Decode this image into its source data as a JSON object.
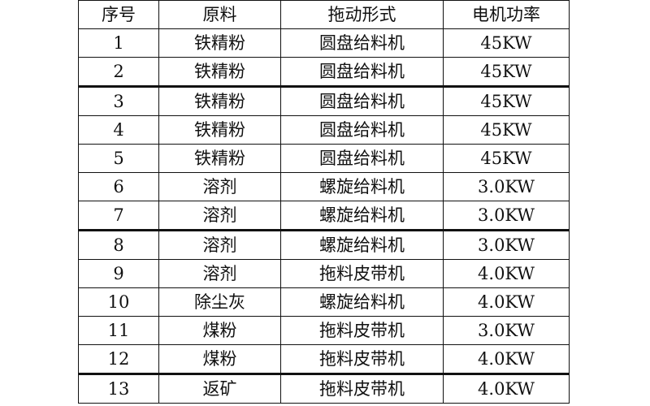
{
  "headers": [
    "序号",
    "原料",
    "拖动形式",
    "电机功率"
  ],
  "rows": [
    [
      "1",
      "铁精粉",
      "圆盘给料机",
      "45KW"
    ],
    [
      "2",
      "铁精粉",
      "圆盘给料机",
      "45KW"
    ],
    [
      "3",
      "铁精粉",
      "圆盘给料机",
      "45KW"
    ],
    [
      "4",
      "铁精粉",
      "圆盘给料机",
      "45KW"
    ],
    [
      "5",
      "铁精粉",
      "圆盘给料机",
      "45KW"
    ],
    [
      "6",
      "溶剂",
      "螺旋给料机",
      "3.0KW"
    ],
    [
      "7",
      "溶剂",
      "螺旋给料机",
      "3.0KW"
    ],
    [
      "8",
      "溶剂",
      "螺旋给料机",
      "3.0KW"
    ],
    [
      "9",
      "溶剂",
      "拖料皮带机",
      "4.0KW"
    ],
    [
      "10",
      "除尘灰",
      "螺旋给料机",
      "4.0KW"
    ],
    [
      "11",
      "煤粉",
      "拖料皮带机",
      "3.0KW"
    ],
    [
      "12",
      "煤粉",
      "拖料皮带机",
      "4.0KW"
    ],
    [
      "13",
      "返矿",
      "拖料皮带机",
      "4.0KW"
    ]
  ]
}
